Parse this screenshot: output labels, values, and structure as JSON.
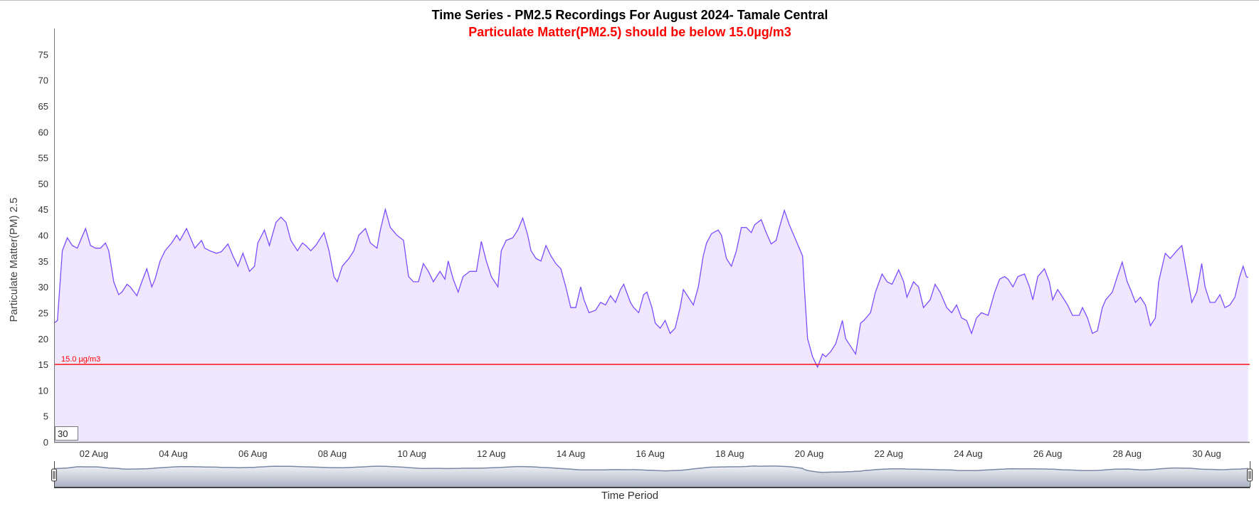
{
  "chart_data": {
    "type": "area",
    "title": "Time Series - PM2.5 Recordings For August 2024- Tamale Central",
    "subtitle": "Particulate Matter(PM2.5) should be below 15.0µg/m3",
    "xlabel": "Time Period",
    "ylabel": "Particulate Matter(PM) 2.5",
    "x_units": "hours since 01 Aug 2024 00:00",
    "xlim": [
      0,
      722
    ],
    "ylim": [
      0,
      80
    ],
    "y_ticks": [
      0,
      5,
      10,
      15,
      20,
      25,
      30,
      35,
      40,
      45,
      50,
      55,
      60,
      65,
      70,
      75
    ],
    "x_ticks": [
      {
        "x": 24,
        "label": "02 Aug"
      },
      {
        "x": 72,
        "label": "04 Aug"
      },
      {
        "x": 120,
        "label": "06 Aug"
      },
      {
        "x": 168,
        "label": "08 Aug"
      },
      {
        "x": 216,
        "label": "10 Aug"
      },
      {
        "x": 264,
        "label": "12 Aug"
      },
      {
        "x": 312,
        "label": "14 Aug"
      },
      {
        "x": 360,
        "label": "16 Aug"
      },
      {
        "x": 408,
        "label": "18 Aug"
      },
      {
        "x": 456,
        "label": "20 Aug"
      },
      {
        "x": 504,
        "label": "22 Aug"
      },
      {
        "x": 552,
        "label": "24 Aug"
      },
      {
        "x": 600,
        "label": "26 Aug"
      },
      {
        "x": 648,
        "label": "28 Aug"
      },
      {
        "x": 696,
        "label": "30 Aug"
      }
    ],
    "threshold": {
      "value": 15.0,
      "label": "15.0 µg/m3",
      "color": "#ff0000"
    },
    "grid": false,
    "line_color": "#7c4dff",
    "fill_color": "#efe6ff",
    "range_input": "30",
    "series": [
      {
        "name": "PM2.5",
        "points": [
          [
            0,
            23
          ],
          [
            2,
            23.5
          ],
          [
            5,
            37
          ],
          [
            8,
            39.5
          ],
          [
            11,
            38
          ],
          [
            14,
            37.5
          ],
          [
            16,
            39
          ],
          [
            19,
            41.3
          ],
          [
            22,
            38
          ],
          [
            25,
            37.5
          ],
          [
            28,
            37.5
          ],
          [
            31,
            38.5
          ],
          [
            33,
            37
          ],
          [
            36,
            31
          ],
          [
            39,
            28.5
          ],
          [
            41,
            29
          ],
          [
            44,
            30.5
          ],
          [
            46,
            30
          ],
          [
            50,
            28.3
          ],
          [
            53,
            31
          ],
          [
            56,
            33.5
          ],
          [
            59,
            30
          ],
          [
            61,
            31.5
          ],
          [
            64,
            35
          ],
          [
            67,
            37
          ],
          [
            71,
            38.5
          ],
          [
            74,
            40
          ],
          [
            76,
            39
          ],
          [
            80,
            41.3
          ],
          [
            83,
            39
          ],
          [
            85,
            37.5
          ],
          [
            89,
            39
          ],
          [
            91,
            37.5
          ],
          [
            94,
            37
          ],
          [
            98,
            36.5
          ],
          [
            101,
            36.8
          ],
          [
            105,
            38.3
          ],
          [
            108,
            36
          ],
          [
            111,
            34
          ],
          [
            114,
            36.5
          ],
          [
            118,
            33
          ],
          [
            121,
            34
          ],
          [
            123,
            38.5
          ],
          [
            127,
            41
          ],
          [
            130,
            38
          ],
          [
            134,
            42.5
          ],
          [
            137,
            43.5
          ],
          [
            140,
            42.5
          ],
          [
            143,
            39
          ],
          [
            147,
            37
          ],
          [
            150,
            38.5
          ],
          [
            152,
            38
          ],
          [
            155,
            37
          ],
          [
            158,
            38
          ],
          [
            163,
            40.5
          ],
          [
            166,
            37
          ],
          [
            169,
            32
          ],
          [
            171,
            31
          ],
          [
            174,
            34
          ],
          [
            178,
            35.5
          ],
          [
            181,
            37
          ],
          [
            184,
            40
          ],
          [
            188,
            41.3
          ],
          [
            191,
            38.5
          ],
          [
            195,
            37.5
          ],
          [
            197,
            41
          ],
          [
            200,
            45
          ],
          [
            203,
            41.5
          ],
          [
            207,
            40
          ],
          [
            211,
            39
          ],
          [
            214,
            32
          ],
          [
            217,
            31
          ],
          [
            220,
            31
          ],
          [
            223,
            34.5
          ],
          [
            226,
            33
          ],
          [
            229,
            31
          ],
          [
            233,
            33
          ],
          [
            236,
            31.5
          ],
          [
            238,
            35
          ],
          [
            241,
            31.5
          ],
          [
            244,
            29
          ],
          [
            247,
            32
          ],
          [
            251,
            33
          ],
          [
            255,
            33
          ],
          [
            258,
            38.8
          ],
          [
            261,
            35
          ],
          [
            264,
            32
          ],
          [
            268,
            30
          ],
          [
            270,
            37
          ],
          [
            273,
            39
          ],
          [
            277,
            39.5
          ],
          [
            280,
            41
          ],
          [
            283,
            43.3
          ],
          [
            286,
            40
          ],
          [
            288,
            37
          ],
          [
            291,
            35.5
          ],
          [
            294,
            35
          ],
          [
            297,
            38
          ],
          [
            300,
            36
          ],
          [
            303,
            34.5
          ],
          [
            306,
            33.5
          ],
          [
            309,
            30
          ],
          [
            312,
            26
          ],
          [
            315,
            26
          ],
          [
            318,
            30
          ],
          [
            320,
            27.5
          ],
          [
            323,
            25
          ],
          [
            327,
            25.5
          ],
          [
            330,
            27
          ],
          [
            333,
            26.5
          ],
          [
            336,
            28.3
          ],
          [
            339,
            27
          ],
          [
            342,
            29.5
          ],
          [
            344,
            30.5
          ],
          [
            348,
            27
          ],
          [
            350,
            26
          ],
          [
            353,
            25
          ],
          [
            356,
            28.5
          ],
          [
            358,
            29
          ],
          [
            361,
            26
          ],
          [
            363,
            23
          ],
          [
            366,
            22
          ],
          [
            369,
            23.5
          ],
          [
            372,
            21
          ],
          [
            375,
            22
          ],
          [
            378,
            26
          ],
          [
            380,
            29.5
          ],
          [
            383,
            28
          ],
          [
            386,
            26.5
          ],
          [
            389,
            30
          ],
          [
            392,
            36
          ],
          [
            394,
            38.5
          ],
          [
            397,
            40.3
          ],
          [
            401,
            41
          ],
          [
            403,
            40
          ],
          [
            406,
            35.5
          ],
          [
            409,
            34
          ],
          [
            412,
            37
          ],
          [
            415,
            41.5
          ],
          [
            418,
            41.5
          ],
          [
            421,
            40.5
          ],
          [
            423,
            42
          ],
          [
            425,
            42.5
          ],
          [
            427,
            43
          ],
          [
            430,
            40.5
          ],
          [
            433,
            38.3
          ],
          [
            436,
            39
          ],
          [
            438,
            41.5
          ],
          [
            441,
            44.8
          ],
          [
            444,
            42
          ],
          [
            448,
            39
          ],
          [
            452,
            36
          ],
          [
            453,
            30
          ],
          [
            455,
            20
          ],
          [
            458,
            16.5
          ],
          [
            461,
            14.5
          ],
          [
            464,
            17
          ],
          [
            466,
            16.5
          ],
          [
            469,
            17.5
          ],
          [
            472,
            19
          ],
          [
            476,
            23.5
          ],
          [
            478,
            20
          ],
          [
            482,
            18
          ],
          [
            484,
            17
          ],
          [
            487,
            23
          ],
          [
            489,
            23.5
          ],
          [
            493,
            25
          ],
          [
            496,
            29
          ],
          [
            500,
            32.5
          ],
          [
            503,
            31
          ],
          [
            506,
            30.5
          ],
          [
            510,
            33.3
          ],
          [
            513,
            31
          ],
          [
            515,
            28
          ],
          [
            519,
            31
          ],
          [
            522,
            30
          ],
          [
            525,
            26
          ],
          [
            529,
            27.5
          ],
          [
            532,
            30.5
          ],
          [
            535,
            29
          ],
          [
            539,
            26
          ],
          [
            542,
            25
          ],
          [
            545,
            26.5
          ],
          [
            548,
            24
          ],
          [
            551,
            23.5
          ],
          [
            554,
            21
          ],
          [
            557,
            24
          ],
          [
            560,
            25
          ],
          [
            564,
            24.5
          ],
          [
            568,
            29
          ],
          [
            571,
            31.5
          ],
          [
            574,
            32
          ],
          [
            576,
            31.5
          ],
          [
            579,
            30
          ],
          [
            582,
            32
          ],
          [
            586,
            32.5
          ],
          [
            589,
            30
          ],
          [
            591,
            27.5
          ],
          [
            594,
            32
          ],
          [
            598,
            33.5
          ],
          [
            601,
            31
          ],
          [
            603,
            27.5
          ],
          [
            606,
            29.5
          ],
          [
            609,
            28
          ],
          [
            612,
            26.5
          ],
          [
            615,
            24.5
          ],
          [
            619,
            24.5
          ],
          [
            621,
            26
          ],
          [
            624,
            24
          ],
          [
            627,
            21
          ],
          [
            630,
            21.5
          ],
          [
            633,
            26
          ],
          [
            635,
            27.5
          ],
          [
            639,
            29
          ],
          [
            642,
            32
          ],
          [
            645,
            34.8
          ],
          [
            648,
            31
          ],
          [
            650,
            29.5
          ],
          [
            653,
            27
          ],
          [
            656,
            28
          ],
          [
            659,
            26.5
          ],
          [
            662,
            22.5
          ],
          [
            665,
            24
          ],
          [
            667,
            31
          ],
          [
            671,
            36.5
          ],
          [
            674,
            35.5
          ],
          [
            678,
            37
          ],
          [
            681,
            38
          ],
          [
            684,
            32.5
          ],
          [
            687,
            27
          ],
          [
            690,
            29
          ],
          [
            693,
            34.5
          ],
          [
            695,
            30
          ],
          [
            698,
            27
          ],
          [
            701,
            27
          ],
          [
            704,
            28.5
          ],
          [
            707,
            26
          ],
          [
            710,
            26.5
          ],
          [
            713,
            28
          ],
          [
            716,
            32
          ],
          [
            718,
            34
          ],
          [
            720,
            32
          ],
          [
            721,
            31.8
          ]
        ]
      }
    ]
  }
}
